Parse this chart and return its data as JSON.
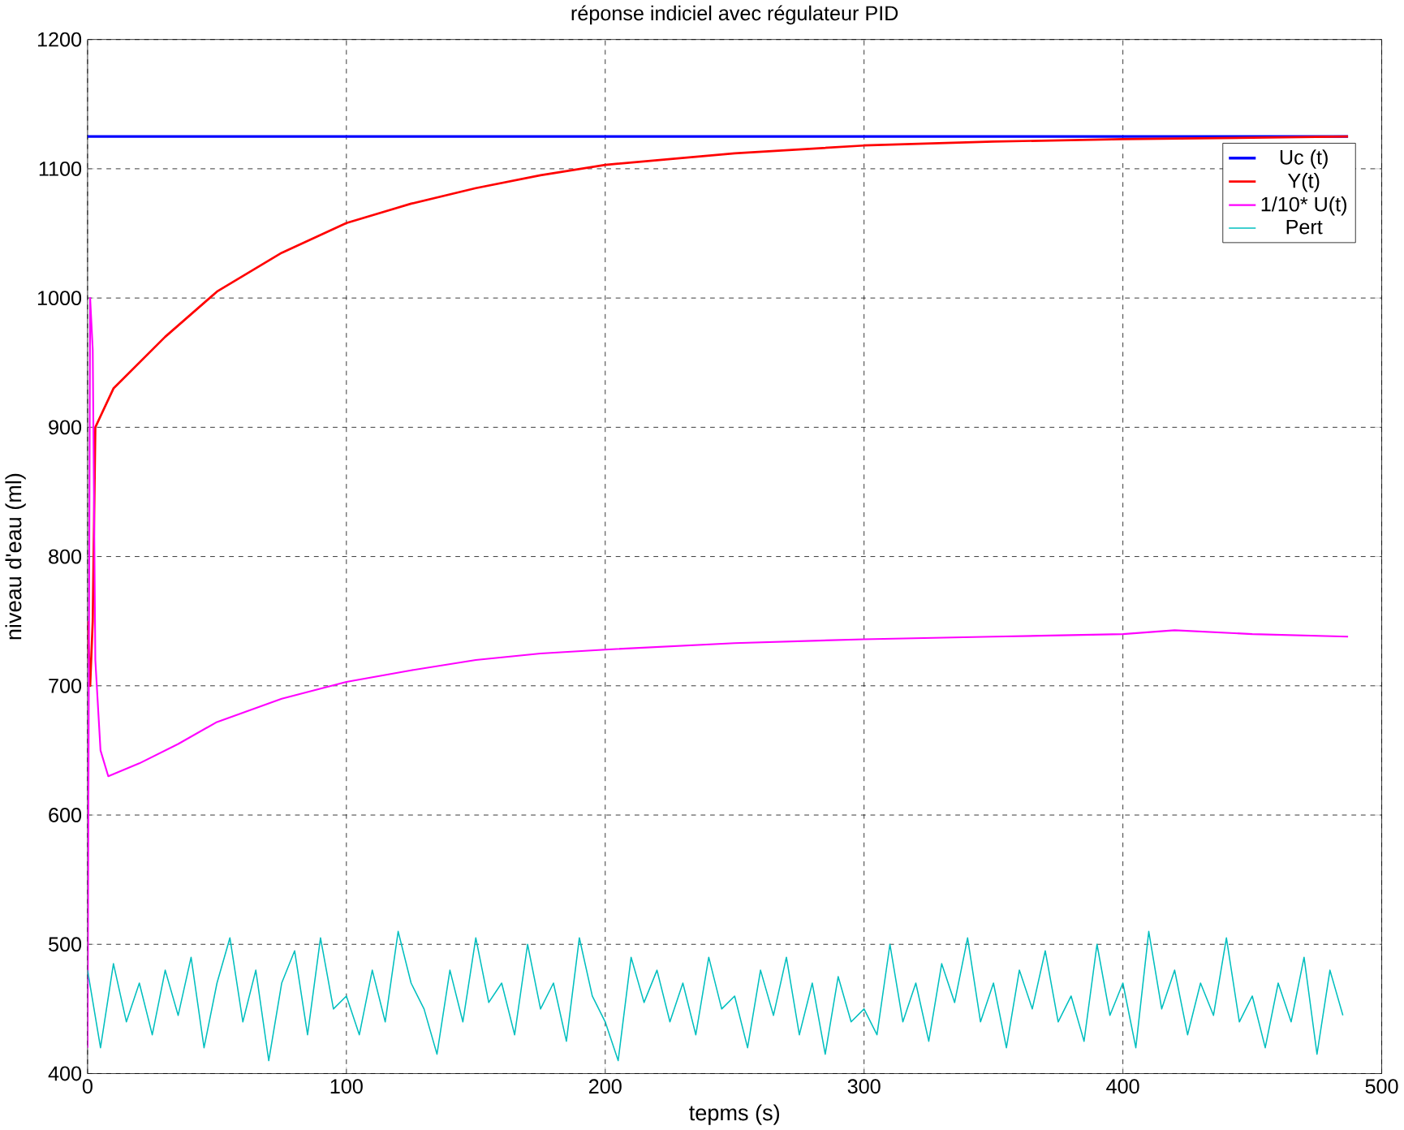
{
  "chart_data": {
    "type": "line",
    "title": "réponse indiciel avec régulateur PID",
    "xlabel": "tepms (s)",
    "ylabel": "niveau d'eau (ml)",
    "xlim": [
      0,
      500
    ],
    "ylim": [
      400,
      1200
    ],
    "xticks": [
      0,
      100,
      200,
      300,
      400,
      500
    ],
    "yticks": [
      400,
      500,
      600,
      700,
      800,
      900,
      1000,
      1100,
      1200
    ],
    "grid": true,
    "legend": "top right",
    "series": [
      {
        "name": "Uc (t)",
        "color": "#0000ff",
        "x": [
          0,
          487
        ],
        "values": [
          1125,
          1125
        ]
      },
      {
        "name": "Y(t)",
        "color": "#ff0000",
        "x": [
          0,
          1,
          2,
          3,
          10,
          20,
          30,
          50,
          75,
          100,
          125,
          150,
          175,
          200,
          250,
          300,
          350,
          400,
          450,
          487
        ],
        "values": [
          750,
          700,
          750,
          900,
          930,
          950,
          970,
          1005,
          1035,
          1058,
          1073,
          1085,
          1095,
          1103,
          1112,
          1118,
          1121,
          1123,
          1124,
          1125
        ]
      },
      {
        "name": "1/10* U(t)",
        "color": "#ff00ff",
        "x": [
          0,
          1,
          2,
          3,
          5,
          8,
          20,
          35,
          50,
          75,
          100,
          125,
          150,
          175,
          200,
          250,
          300,
          350,
          400,
          420,
          450,
          487
        ],
        "values": [
          420,
          1000,
          960,
          720,
          650,
          630,
          640,
          655,
          672,
          690,
          703,
          712,
          720,
          725,
          728,
          733,
          736,
          738,
          740,
          743,
          740,
          738
        ]
      },
      {
        "name": "Pert",
        "color": "#00bfbf",
        "x": [
          0,
          5,
          10,
          15,
          20,
          25,
          30,
          35,
          40,
          45,
          50,
          55,
          60,
          65,
          70,
          75,
          80,
          85,
          90,
          95,
          100,
          105,
          110,
          115,
          120,
          125,
          130,
          135,
          140,
          145,
          150,
          155,
          160,
          165,
          170,
          175,
          180,
          185,
          190,
          195,
          200,
          205,
          210,
          215,
          220,
          225,
          230,
          235,
          240,
          245,
          250,
          255,
          260,
          265,
          270,
          275,
          280,
          285,
          290,
          295,
          300,
          305,
          310,
          315,
          320,
          325,
          330,
          335,
          340,
          345,
          350,
          355,
          360,
          365,
          370,
          375,
          380,
          385,
          390,
          395,
          400,
          405,
          410,
          415,
          420,
          425,
          430,
          435,
          440,
          445,
          450,
          455,
          460,
          465,
          470,
          475,
          480,
          485
        ],
        "values": [
          480,
          420,
          485,
          440,
          470,
          430,
          480,
          445,
          490,
          420,
          470,
          505,
          440,
          480,
          410,
          470,
          495,
          430,
          505,
          450,
          460,
          430,
          480,
          440,
          510,
          470,
          450,
          415,
          480,
          440,
          505,
          455,
          470,
          430,
          500,
          450,
          470,
          425,
          505,
          460,
          440,
          410,
          490,
          455,
          480,
          440,
          470,
          430,
          490,
          450,
          460,
          420,
          480,
          445,
          490,
          430,
          470,
          415,
          475,
          440,
          450,
          430,
          500,
          440,
          470,
          425,
          485,
          455,
          505,
          440,
          470,
          420,
          480,
          450,
          495,
          440,
          460,
          425,
          500,
          445,
          470,
          420,
          510,
          450,
          480,
          430,
          470,
          445,
          505,
          440,
          460,
          420,
          470,
          440,
          490,
          415,
          480,
          445
        ]
      }
    ]
  }
}
